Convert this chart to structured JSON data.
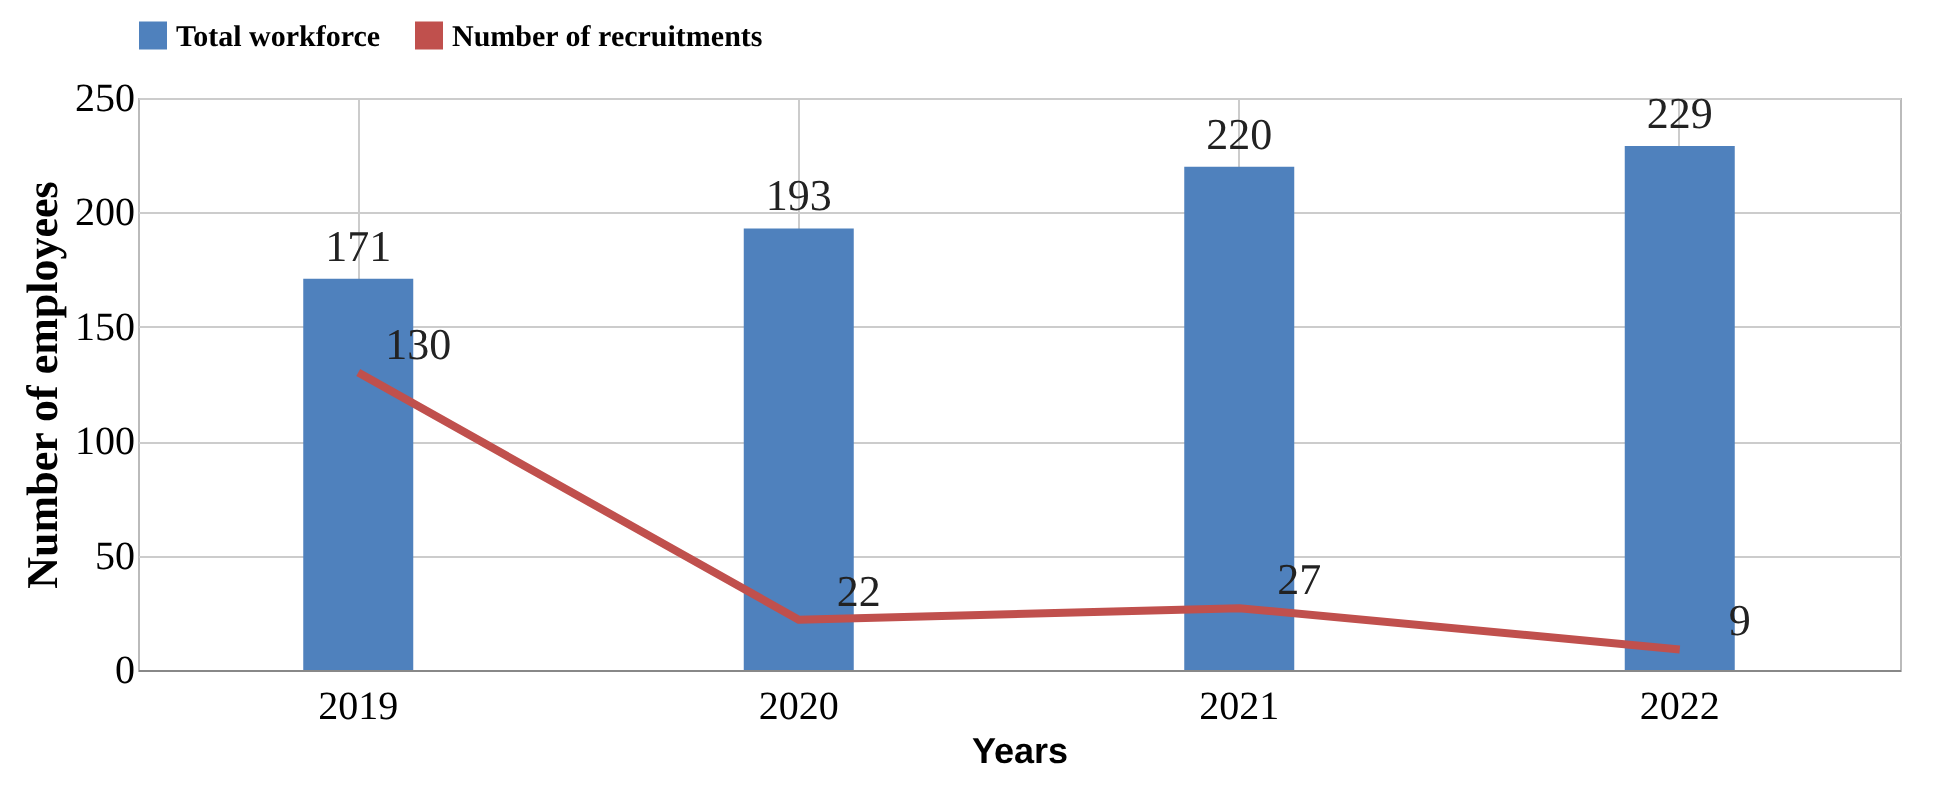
{
  "chart_data": {
    "type": "bar",
    "xlabel": "Years",
    "ylabel": "Number of employees",
    "categories": [
      "2019",
      "2020",
      "2021",
      "2022"
    ],
    "series": [
      {
        "name": "Total workforce",
        "color": "#4f81bd",
        "values": [
          171,
          193,
          220,
          229
        ]
      },
      {
        "name": "Number of recruitments",
        "type": "line",
        "color": "#c0504d",
        "values": [
          130,
          22,
          27,
          9
        ]
      }
    ],
    "ylim": [
      0,
      250
    ],
    "yticks": [
      0,
      50,
      100,
      150,
      200,
      250
    ],
    "grid": true,
    "legend": "top",
    "data_labels": true,
    "marker": "none",
    "line_style": "solid"
  }
}
